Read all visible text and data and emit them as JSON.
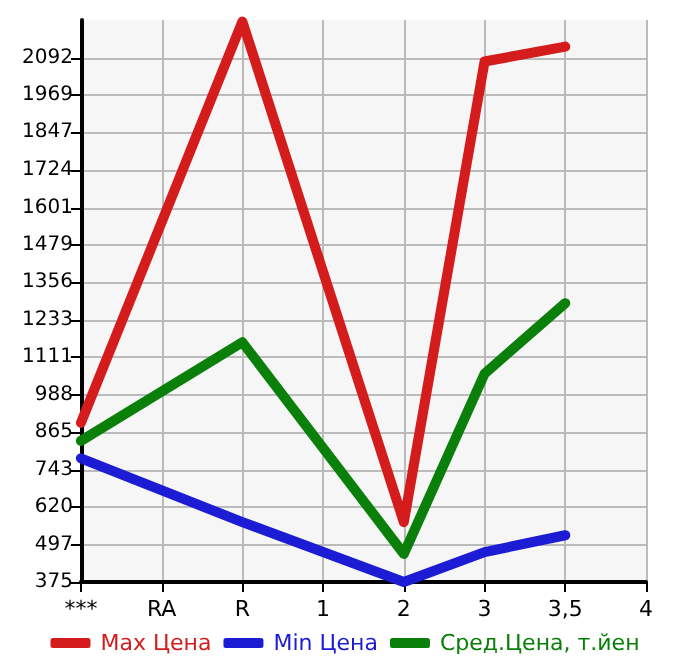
{
  "chart_data": {
    "type": "line",
    "categories": [
      "***",
      "RA",
      "R",
      "1",
      "2",
      "3",
      "3,5",
      "4"
    ],
    "series": [
      {
        "name": "Max Цена",
        "color": "#d41c1c",
        "values": [
          896,
          null,
          2210,
          null,
          571,
          2079,
          2128,
          null
        ]
      },
      {
        "name": "Min Цена",
        "color": "#1c1cd4",
        "values": [
          780,
          null,
          571,
          null,
          375,
          473,
          528,
          null
        ]
      },
      {
        "name": "Сред.Цена, т.йен",
        "color": "#0a800a",
        "values": [
          837,
          null,
          1160,
          null,
          467,
          1057,
          1288,
          null
        ]
      }
    ],
    "ylim": [
      375,
      2215
    ],
    "yticks": [
      375,
      497,
      620,
      743,
      865,
      988,
      1111,
      1233,
      1356,
      1479,
      1601,
      1724,
      1847,
      1969,
      2092
    ],
    "grid": true,
    "legend": "bottom",
    "marker": "none",
    "line_style": "solid"
  }
}
